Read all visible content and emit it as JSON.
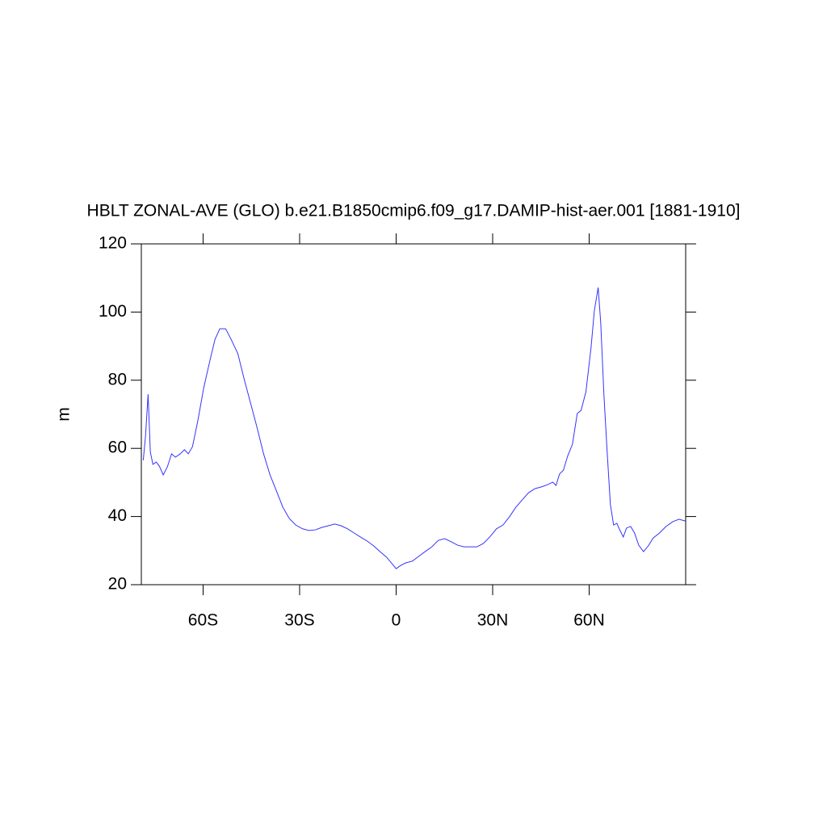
{
  "chart_data": {
    "type": "line",
    "title": "HBLT ZONAL-AVE (GLO) b.e21.B1850cmip6.f09_g17.DAMIP-hist-aer.001 [1881-1910]",
    "y_label": "m",
    "xlim": [
      -79.2,
      90
    ],
    "ylim": [
      20,
      120
    ],
    "xticks": [
      {
        "value": -60,
        "label": "60S"
      },
      {
        "value": -30,
        "label": "30S"
      },
      0,
      {
        "value": 30,
        "label": "30N"
      },
      {
        "value": 60,
        "label": "60N"
      }
    ],
    "yticks": [
      20,
      40,
      60,
      80,
      100,
      120
    ],
    "series": [
      {
        "color": "#3333ff",
        "x": [
          -78.6,
          -77.9,
          -77.1,
          -76.4,
          -75.6,
          -74.6,
          -73.6,
          -72.4,
          -71.1,
          -69.8,
          -68.6,
          -67.1,
          -65.8,
          -64.6,
          -63.3,
          -61.6,
          -59.8,
          -57.8,
          -56.3,
          -54.8,
          -53.0,
          -51.3,
          -49.2,
          -47.2,
          -45.2,
          -43.2,
          -41.2,
          -39.2,
          -37.2,
          -35.2,
          -33.2,
          -31.2,
          -29.1,
          -27.1,
          -25.1,
          -23.1,
          -21.1,
          -19.1,
          -17.1,
          -15.1,
          -13.1,
          -11.1,
          -9.0,
          -7.0,
          -5.0,
          -3.0,
          -1.5,
          0,
          1.5,
          3.0,
          5.0,
          7.0,
          9.0,
          11.1,
          13.1,
          15.1,
          17.1,
          19.1,
          21.1,
          23.1,
          25.1,
          27.1,
          29.1,
          31.2,
          33.2,
          35.2,
          37.2,
          39.2,
          41.2,
          43.2,
          45.2,
          47.2,
          48.7,
          49.7,
          50.8,
          52.0,
          53.3,
          54.8,
          56.3,
          57.5,
          59.0,
          60.6,
          61.6,
          62.8,
          63.6,
          64.6,
          65.6,
          66.6,
          67.6,
          68.6,
          69.6,
          70.6,
          71.6,
          72.9,
          74.1,
          75.4,
          76.9,
          78.4,
          79.9,
          81.9,
          83.9,
          86.0,
          87.9,
          89.9
        ],
        "values": [
          56.5,
          63.6,
          75.9,
          58.9,
          55.3,
          56.0,
          54.8,
          52.2,
          54.6,
          58.4,
          57.4,
          58.4,
          59.6,
          58.4,
          60.5,
          68.3,
          77.8,
          86.1,
          92.0,
          95.1,
          95.1,
          92.0,
          87.8,
          80.2,
          73.1,
          66.0,
          58.4,
          52.2,
          47.5,
          42.7,
          39.4,
          37.5,
          36.4,
          35.9,
          36.1,
          36.8,
          37.3,
          37.8,
          37.3,
          36.4,
          35.2,
          34.0,
          32.8,
          31.4,
          29.7,
          28.1,
          26.4,
          24.7,
          25.7,
          26.4,
          26.9,
          28.3,
          29.7,
          31.1,
          33.0,
          33.5,
          32.6,
          31.6,
          31.1,
          31.1,
          31.1,
          32.1,
          34.0,
          36.4,
          37.5,
          39.9,
          42.7,
          44.9,
          47.0,
          48.2,
          48.7,
          49.4,
          50.1,
          49.1,
          52.5,
          53.6,
          57.7,
          61.2,
          70.2,
          71.2,
          76.6,
          89.7,
          100.3,
          107.2,
          96.8,
          75.5,
          58.9,
          43.5,
          37.5,
          38.0,
          35.9,
          34.0,
          36.6,
          37.1,
          35.2,
          31.6,
          29.7,
          31.4,
          33.7,
          35.2,
          37.1,
          38.5,
          39.2,
          38.7
        ]
      }
    ]
  }
}
